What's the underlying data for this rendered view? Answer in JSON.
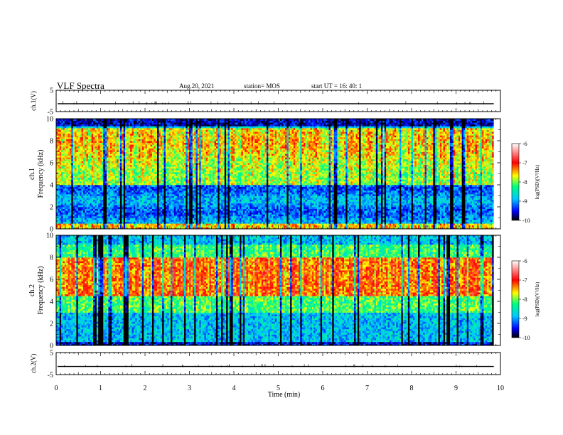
{
  "header": {
    "title": "VLF Spectra",
    "date": "Aug.20, 2021",
    "station": "station= MOS",
    "start": "start  UT =   16: 40: 1"
  },
  "chart_data": [
    {
      "type": "line",
      "id": "ch1-waveform",
      "ylabel": "ch.1(V)",
      "yticks": [
        "5",
        "-5"
      ],
      "ylim": [
        -5,
        5
      ],
      "xlim": [
        0,
        10
      ],
      "series": [
        {
          "values": [
            -1.3
          ]
        }
      ]
    },
    {
      "type": "heatmap",
      "id": "ch1-spectrogram",
      "ylabel": "ch.1",
      "ylabel2": "Frequency (kHz)",
      "yticks": [
        "0",
        "2",
        "4",
        "6",
        "8",
        "10"
      ],
      "ylim": [
        0,
        10
      ],
      "xlim": [
        0,
        10
      ],
      "data_end_min": 9.85,
      "colorbar": {
        "ticks": [
          "-6",
          "-7",
          "-8",
          "-9",
          "-10"
        ],
        "label": "log(PSD)(V²/Hz)",
        "range": [
          -10,
          -6
        ]
      }
    },
    {
      "type": "heatmap",
      "id": "ch2-spectrogram",
      "ylabel": "ch.2",
      "ylabel2": "Frequency (kHz)",
      "yticks": [
        "0",
        "2",
        "4",
        "6",
        "8",
        "10"
      ],
      "ylim": [
        0,
        10
      ],
      "xlim": [
        0,
        10
      ],
      "data_end_min": 9.85,
      "colorbar": {
        "ticks": [
          "-6",
          "-7",
          "-8",
          "-9",
          "-10"
        ],
        "label": "log(PSD)(V²/Hz)",
        "range": [
          -10,
          -6
        ]
      }
    },
    {
      "type": "line",
      "id": "ch2-waveform",
      "ylabel": "ch.2(V)",
      "yticks": [
        "5",
        "-5"
      ],
      "ylim": [
        -5,
        5
      ],
      "xlim": [
        0,
        10
      ],
      "series": [
        {
          "values": [
            -1.3
          ]
        }
      ]
    }
  ],
  "xaxis": {
    "label": "Time (min)",
    "ticks": [
      "0",
      "1",
      "2",
      "3",
      "4",
      "5",
      "6",
      "7",
      "8",
      "9",
      "10"
    ]
  }
}
